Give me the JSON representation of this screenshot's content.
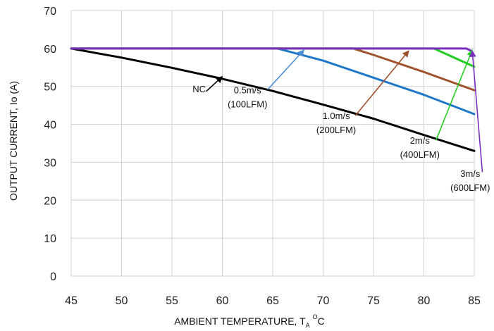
{
  "chart_data": {
    "type": "line",
    "xlabel_main": "AMBIENT TEMPERATURE, T",
    "xlabel_sub": "A",
    "xlabel_sup": "O",
    "xlabel_unit": "C",
    "ylabel": "OUTPUT CURRENT, Io (A)",
    "xlim": [
      45,
      85
    ],
    "ylim": [
      0,
      70
    ],
    "xticks": [
      "45",
      "50",
      "55",
      "60",
      "65",
      "70",
      "75",
      "80",
      "85"
    ],
    "yticks": [
      "0",
      "10",
      "20",
      "30",
      "40",
      "50",
      "60",
      "70"
    ],
    "grid": true,
    "series": [
      {
        "key": "nc",
        "color": "#000000",
        "x": [
          45,
          50,
          55,
          60,
          65,
          70,
          75,
          80,
          85
        ],
        "y": [
          60,
          57.6,
          54.9,
          52,
          48.8,
          45.2,
          41.5,
          37.2,
          33
        ]
      },
      {
        "key": "v05",
        "color": "#1F77C8",
        "x": [
          45,
          65.5,
          70,
          75,
          80,
          85
        ],
        "y": [
          60,
          60,
          56.8,
          52.3,
          47.8,
          42.7
        ]
      },
      {
        "key": "v10",
        "color": "#A0522D",
        "x": [
          45,
          73,
          75,
          80,
          85
        ],
        "y": [
          60,
          60,
          58.3,
          53.8,
          49
        ]
      },
      {
        "key": "v2",
        "color": "#22CC22",
        "x": [
          45,
          81,
          85
        ],
        "y": [
          60,
          60,
          55.2
        ]
      },
      {
        "key": "v3",
        "color": "#7B2FBE",
        "x": [
          45,
          84.2,
          84.7
        ],
        "y": [
          60,
          60,
          59.4
        ]
      }
    ],
    "annotations": [
      {
        "key": "nc",
        "lines": [
          "NC"
        ],
        "color": "#000000",
        "text_at": [
          57.7,
          48.5
        ],
        "arrow_from": [
          58.4,
          48.7
        ],
        "arrow_to": [
          60,
          52.6
        ]
      },
      {
        "key": "v05",
        "lines": [
          "0.5m/s",
          "(100LFM)"
        ],
        "color": "#4A8FD8",
        "text_at": [
          62.5,
          48.2
        ],
        "arrow_from": [
          64.5,
          49.2
        ],
        "arrow_to": [
          68.1,
          59.6
        ]
      },
      {
        "key": "v10",
        "lines": [
          "1.0m/s",
          "(200LFM)"
        ],
        "color": "#A0522D",
        "text_at": [
          71.3,
          41.4
        ],
        "arrow_from": [
          73.2,
          42.3
        ],
        "arrow_to": [
          78.5,
          59.4
        ]
      },
      {
        "key": "v2",
        "lines": [
          "2m/s",
          "(400LFM)"
        ],
        "color": "#22CC22",
        "text_at": [
          79.6,
          34.9
        ],
        "arrow_from": [
          81.2,
          35.8
        ],
        "arrow_to": [
          86.4,
          59.6
        ]
      },
      {
        "key": "v3",
        "lines": [
          "3m/s",
          "(600LFM)"
        ],
        "color": "#7B2FBE",
        "text_at": [
          84.6,
          26.2
        ],
        "arrow_from": [
          85.8,
          27.4
        ],
        "arrow_to": [
          94.2,
          59.4
        ]
      }
    ]
  }
}
